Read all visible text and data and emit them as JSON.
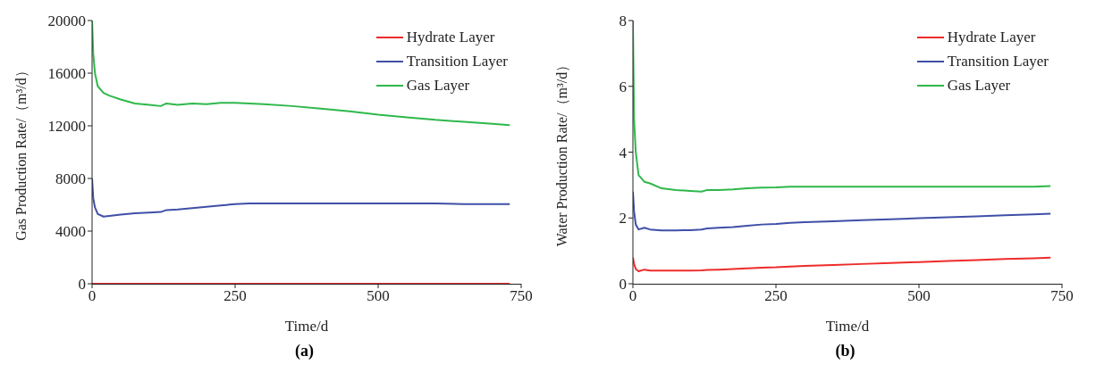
{
  "chart_data": [
    {
      "type": "line",
      "xlabel": "Time/d",
      "ylabel": "Gas Production Rate/（m³/d）",
      "annotations": [
        "(a)"
      ],
      "xlim": [
        0,
        750
      ],
      "xticks": [
        0,
        250,
        500,
        750
      ],
      "ylim": [
        0,
        20000
      ],
      "yticks": [
        0,
        4000,
        8000,
        12000,
        16000,
        20000
      ],
      "grid": false,
      "legend": "top right",
      "marker": "none",
      "line_style": "solid",
      "x": [
        0,
        2,
        5,
        10,
        20,
        30,
        50,
        75,
        100,
        120,
        130,
        150,
        175,
        200,
        225,
        250,
        275,
        300,
        350,
        400,
        450,
        500,
        550,
        600,
        650,
        700,
        730
      ],
      "series": [
        {
          "name": "Hydrate Layer",
          "color": "#ee2b2b",
          "values": [
            0,
            0,
            0,
            0,
            0,
            0,
            0,
            0,
            0,
            0,
            0,
            0,
            0,
            0,
            0,
            0,
            0,
            0,
            0,
            0,
            0,
            0,
            0,
            0,
            0,
            0,
            0
          ]
        },
        {
          "name": "Transition Layer",
          "color": "#3f4fa8",
          "values": [
            8000,
            6500,
            5800,
            5300,
            5100,
            5150,
            5250,
            5350,
            5400,
            5450,
            5600,
            5650,
            5750,
            5850,
            5950,
            6050,
            6100,
            6100,
            6100,
            6100,
            6100,
            6100,
            6100,
            6100,
            6050,
            6050,
            6050
          ]
        },
        {
          "name": "Gas Layer",
          "color": "#2eb84b",
          "values": [
            20000,
            17500,
            16000,
            15000,
            14500,
            14300,
            14000,
            13700,
            13600,
            13500,
            13700,
            13600,
            13700,
            13650,
            13750,
            13750,
            13700,
            13650,
            13500,
            13300,
            13100,
            12850,
            12650,
            12450,
            12300,
            12150,
            12050
          ]
        }
      ]
    },
    {
      "type": "line",
      "xlabel": "Time/d",
      "ylabel": "Water Production Rate/（m³/d）",
      "annotations": [
        "(b)"
      ],
      "xlim": [
        0,
        750
      ],
      "xticks": [
        0,
        250,
        500,
        750
      ],
      "ylim": [
        0,
        8
      ],
      "yticks": [
        0,
        2,
        4,
        6,
        8
      ],
      "grid": false,
      "legend": "top right",
      "marker": "none",
      "line_style": "solid",
      "x": [
        0,
        2,
        5,
        10,
        20,
        30,
        50,
        75,
        100,
        120,
        130,
        150,
        175,
        200,
        225,
        250,
        275,
        300,
        350,
        400,
        450,
        500,
        550,
        600,
        650,
        700,
        730
      ],
      "series": [
        {
          "name": "Hydrate Layer",
          "color": "#ee2b2b",
          "values": [
            0.8,
            0.6,
            0.45,
            0.38,
            0.43,
            0.4,
            0.4,
            0.4,
            0.4,
            0.41,
            0.42,
            0.43,
            0.45,
            0.47,
            0.49,
            0.5,
            0.52,
            0.54,
            0.57,
            0.6,
            0.63,
            0.66,
            0.69,
            0.72,
            0.75,
            0.77,
            0.79
          ]
        },
        {
          "name": "Transition Layer",
          "color": "#3f4fa8",
          "values": [
            2.8,
            2.2,
            1.8,
            1.65,
            1.7,
            1.65,
            1.62,
            1.62,
            1.63,
            1.65,
            1.68,
            1.7,
            1.72,
            1.76,
            1.8,
            1.82,
            1.85,
            1.87,
            1.9,
            1.93,
            1.96,
            1.99,
            2.02,
            2.05,
            2.08,
            2.11,
            2.13
          ]
        },
        {
          "name": "Gas Layer",
          "color": "#2eb84b",
          "values": [
            8,
            5,
            4,
            3.3,
            3.1,
            3.05,
            2.9,
            2.85,
            2.82,
            2.8,
            2.85,
            2.85,
            2.87,
            2.9,
            2.92,
            2.93,
            2.95,
            2.95,
            2.95,
            2.95,
            2.95,
            2.95,
            2.95,
            2.95,
            2.95,
            2.95,
            2.97
          ]
        }
      ]
    }
  ]
}
